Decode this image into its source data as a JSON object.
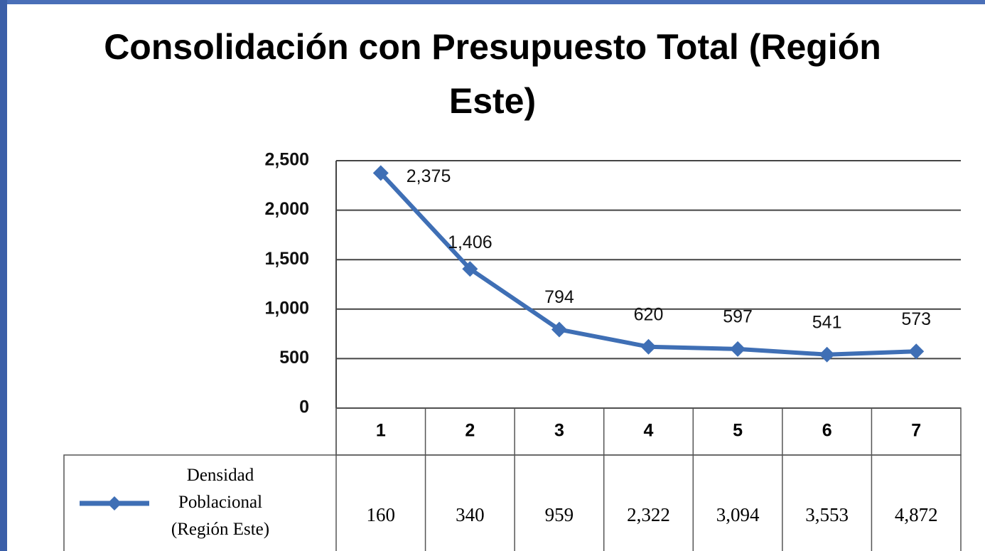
{
  "chart_data": {
    "type": "line",
    "title": "Consolidación con Presupuesto Total (Región Este)",
    "categories": [
      "1",
      "2",
      "3",
      "4",
      "5",
      "6",
      "7"
    ],
    "series": [
      {
        "name": "Densidad Poblacional (Región Este)",
        "color": "#3f6fb5",
        "values": [
          2375,
          1406,
          794,
          620,
          597,
          541,
          573
        ],
        "value_labels": [
          "2,375",
          "1,406",
          "794",
          "620",
          "597",
          "541",
          "573"
        ]
      }
    ],
    "table_values": [
      "160",
      "340",
      "959",
      "2,322",
      "3,094",
      "3,553",
      "4,872"
    ],
    "ylim": [
      0,
      2500
    ],
    "yticks": [
      0,
      {
        "value": 500,
        "label": "500"
      },
      {
        "value": 1000,
        "label": "1,000"
      },
      {
        "value": 1500,
        "label": "1,500"
      },
      {
        "value": 2000,
        "label": "2,000"
      },
      {
        "value": 2500,
        "label": "2,500"
      }
    ],
    "grid": true
  }
}
